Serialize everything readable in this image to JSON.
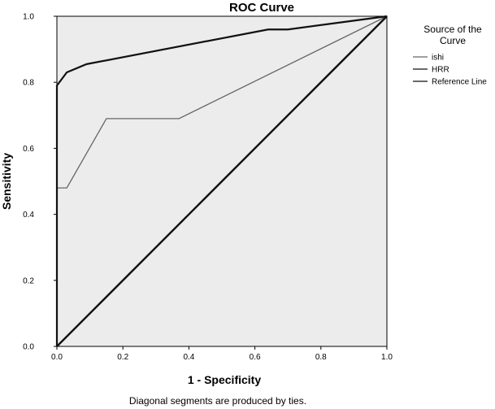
{
  "chart_data": {
    "type": "line",
    "title": "ROC Curve",
    "xlabel": "1 - Specificity",
    "ylabel": "Sensitivity",
    "xlim": [
      0,
      1
    ],
    "ylim": [
      0,
      1
    ],
    "xticks": [
      "0.0",
      "0.2",
      "0.4",
      "0.6",
      "0.8",
      "1.0"
    ],
    "yticks": [
      "0.0",
      "0.2",
      "0.4",
      "0.6",
      "0.8",
      "1.0"
    ],
    "legend": {
      "title_line1": "Source of the",
      "title_line2": "Curve",
      "placement": "right"
    },
    "series": [
      {
        "name": "ishi",
        "color": "#666666",
        "x": [
          0,
          0,
          0.03,
          0.15,
          0.37,
          1.0
        ],
        "y": [
          0,
          0.48,
          0.48,
          0.69,
          0.69,
          1.0
        ]
      },
      {
        "name": "HRR",
        "color": "#111111",
        "x": [
          0,
          0,
          0.03,
          0.09,
          0.64,
          0.7,
          1.0
        ],
        "y": [
          0,
          0.79,
          0.83,
          0.855,
          0.96,
          0.96,
          1.0
        ]
      },
      {
        "name": "Reference Line",
        "color": "#111111",
        "x": [
          0,
          1
        ],
        "y": [
          0,
          1
        ]
      }
    ],
    "footnote": "Diagonal segments are produced by ties.",
    "background": "#ececec"
  }
}
